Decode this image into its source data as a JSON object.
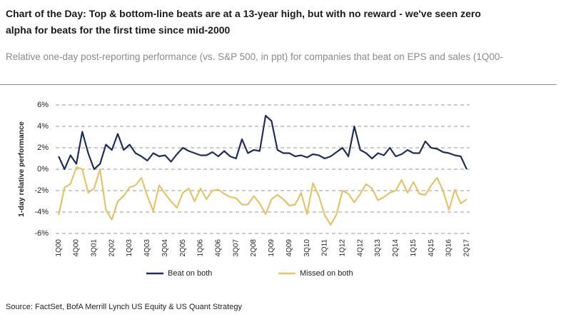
{
  "chart_data": {
    "type": "line",
    "title": "Chart of the Day: Top & bottom-line beats are at a 13-year high, but with no reward - we've seen zero alpha for beats for the first time since mid-2000",
    "subtitle": "Relative one-day post-reporting performance (vs. S&P 500, in ppt) for companies that beat on EPS and sales (1Q00-",
    "y_label": "1-day relative performance",
    "source": "Source: FactSet, BofA Merrill Lynch US Equity & US Quant Strategy",
    "categories": [
      "1Q00",
      null,
      null,
      "4Q00",
      null,
      null,
      "3Q01",
      null,
      null,
      "2Q02",
      null,
      null,
      "1Q03",
      null,
      null,
      "4Q03",
      null,
      null,
      "3Q04",
      null,
      null,
      "2Q05",
      null,
      null,
      "1Q06",
      null,
      null,
      "4Q06",
      null,
      null,
      "3Q07",
      null,
      null,
      "2Q08",
      null,
      null,
      "1Q09",
      null,
      null,
      "4Q09",
      null,
      null,
      "3Q10",
      null,
      null,
      "2Q11",
      null,
      null,
      "1Q12",
      null,
      null,
      "4Q12",
      null,
      null,
      "3Q13",
      null,
      null,
      "2Q14",
      null,
      null,
      "1Q15",
      null,
      null,
      "4Q15",
      null,
      null,
      "3Q16",
      null,
      null,
      "2Q17"
    ],
    "series": [
      {
        "name": "Beat on both",
        "color": "#1f2f5a",
        "values": [
          1.2,
          0.0,
          1.3,
          0.5,
          3.5,
          1.5,
          0.0,
          0.5,
          2.3,
          1.8,
          3.3,
          1.8,
          2.3,
          1.5,
          1.2,
          0.8,
          1.5,
          1.2,
          1.3,
          0.7,
          1.4,
          2.0,
          1.7,
          1.5,
          1.3,
          1.3,
          1.6,
          1.2,
          1.7,
          1.2,
          1.0,
          2.8,
          1.5,
          1.8,
          1.7,
          5.0,
          4.5,
          1.8,
          1.5,
          1.5,
          1.2,
          1.3,
          1.1,
          1.4,
          1.3,
          1.0,
          1.2,
          1.6,
          2.0,
          1.2,
          4.0,
          1.8,
          1.5,
          1.0,
          1.5,
          1.3,
          2.0,
          1.2,
          1.4,
          1.8,
          1.5,
          1.5,
          2.6,
          2.0,
          1.9,
          1.6,
          1.5,
          1.3,
          1.2,
          0.0
        ]
      },
      {
        "name": "Missed on both",
        "color": "#e3c466",
        "values": [
          -4.3,
          -1.7,
          -1.4,
          0.2,
          0.0,
          -2.2,
          -1.8,
          0.0,
          -3.8,
          -4.7,
          -3.0,
          -2.5,
          -1.7,
          -1.5,
          -0.8,
          -2.5,
          -3.9,
          -1.5,
          -2.3,
          -3.0,
          -3.6,
          -2.2,
          -1.8,
          -3.0,
          -1.8,
          -2.8,
          -2.0,
          -1.9,
          -2.3,
          -2.6,
          -2.7,
          -3.3,
          -3.3,
          -2.5,
          -3.2,
          -4.2,
          -2.8,
          -2.4,
          -2.8,
          -3.4,
          -3.3,
          -2.2,
          -4.2,
          -1.3,
          -2.5,
          -4.3,
          -5.2,
          -4.2,
          -2.0,
          -2.3,
          -3.1,
          -2.3,
          -1.4,
          -1.8,
          -2.9,
          -2.6,
          -2.2,
          -2.0,
          -1.0,
          -2.2,
          -1.2,
          -2.3,
          -2.4,
          -1.5,
          -0.8,
          -2.0,
          -3.8,
          -1.9,
          -3.2,
          -2.8
        ]
      }
    ],
    "ylim": [
      -6,
      6
    ],
    "yticks": [
      {
        "value": -6,
        "label": "-6%"
      },
      {
        "value": -4,
        "label": "-4%"
      },
      {
        "value": -2,
        "label": "-2%"
      },
      {
        "value": 0,
        "label": "0%"
      },
      {
        "value": 2,
        "label": "2%"
      },
      {
        "value": 4,
        "label": "4%"
      },
      {
        "value": 6,
        "label": "6%"
      }
    ],
    "grid": true,
    "legend": "bottom"
  }
}
